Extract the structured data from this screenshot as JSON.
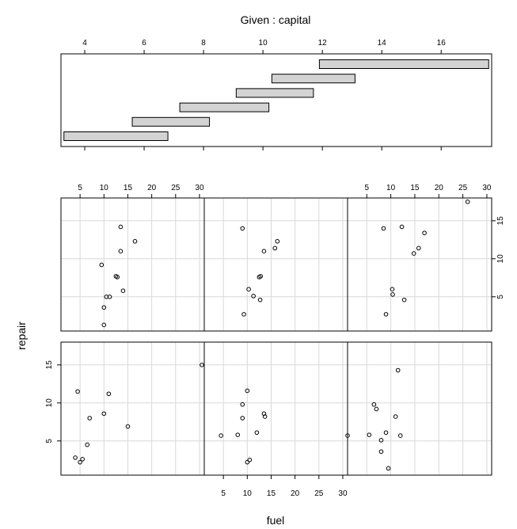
{
  "chart_data": {
    "type": "scatter",
    "title": "Given : capital",
    "xlabel": "fuel",
    "ylabel": "repair",
    "grid": true,
    "given": {
      "axis_ticks": [
        4,
        6,
        8,
        10,
        12,
        14,
        16
      ],
      "range": [
        3.2,
        17.7
      ],
      "intervals": [
        [
          3.3,
          6.8
        ],
        [
          5.6,
          8.2
        ],
        [
          7.2,
          10.2
        ],
        [
          9.1,
          11.7
        ],
        [
          10.3,
          13.1
        ],
        [
          11.9,
          17.6
        ]
      ]
    },
    "xlim": [
      1,
      31
    ],
    "ylim": [
      0.5,
      18
    ],
    "x_ticks": [
      5,
      10,
      15,
      20,
      25,
      30
    ],
    "y_ticks": [
      5,
      10,
      15
    ],
    "panels": [
      {
        "row": "bottom",
        "col": 0,
        "points": [
          [
            4.0,
            2.8
          ],
          [
            5.0,
            2.2
          ],
          [
            5.5,
            2.6
          ],
          [
            6.5,
            4.5
          ],
          [
            7.0,
            8.0
          ],
          [
            4.5,
            11.5
          ],
          [
            10.0,
            8.6
          ],
          [
            11.0,
            11.2
          ],
          [
            15.0,
            6.9
          ]
        ]
      },
      {
        "row": "bottom",
        "col": 1,
        "points": [
          [
            4.5,
            5.7
          ],
          [
            8.0,
            5.8
          ],
          [
            9.0,
            8.0
          ],
          [
            9.0,
            9.8
          ],
          [
            10.0,
            11.6
          ],
          [
            10.0,
            2.2
          ],
          [
            10.5,
            2.5
          ],
          [
            12.0,
            6.1
          ],
          [
            13.5,
            8.6
          ],
          [
            13.7,
            8.2
          ],
          [
            0.5,
            15.0
          ]
        ]
      },
      {
        "row": "bottom",
        "col": 2,
        "points": [
          [
            1.0,
            5.7
          ],
          [
            5.5,
            5.8
          ],
          [
            6.5,
            9.8
          ],
          [
            7.0,
            9.2
          ],
          [
            8.0,
            3.6
          ],
          [
            8.0,
            5.1
          ],
          [
            9.0,
            6.1
          ],
          [
            9.5,
            1.4
          ],
          [
            11.0,
            8.2
          ],
          [
            11.5,
            14.3
          ],
          [
            12.0,
            5.7
          ]
        ]
      },
      {
        "row": "top",
        "col": 0,
        "points": [
          [
            9.5,
            9.2
          ],
          [
            13.5,
            14.2
          ],
          [
            13.5,
            11.0
          ],
          [
            16.5,
            12.3
          ],
          [
            12.5,
            7.7
          ],
          [
            12.8,
            7.6
          ],
          [
            14.0,
            5.8
          ],
          [
            10.5,
            5.0
          ],
          [
            11.2,
            5.0
          ],
          [
            10.0,
            3.6
          ],
          [
            10.0,
            1.3
          ]
        ]
      },
      {
        "row": "top",
        "col": 1,
        "points": [
          [
            9.0,
            14.0
          ],
          [
            13.5,
            11.0
          ],
          [
            15.8,
            11.4
          ],
          [
            16.3,
            12.3
          ],
          [
            12.5,
            7.6
          ],
          [
            12.8,
            7.7
          ],
          [
            10.3,
            6.0
          ],
          [
            11.3,
            5.1
          ],
          [
            12.7,
            4.6
          ],
          [
            9.3,
            2.7
          ]
        ]
      },
      {
        "row": "top",
        "col": 2,
        "points": [
          [
            8.5,
            14.0
          ],
          [
            12.3,
            14.2
          ],
          [
            17.0,
            13.4
          ],
          [
            15.8,
            11.4
          ],
          [
            14.8,
            10.7
          ],
          [
            10.3,
            6.0
          ],
          [
            10.4,
            5.3
          ],
          [
            12.8,
            4.6
          ],
          [
            9.0,
            2.7
          ],
          [
            26.0,
            17.5
          ]
        ]
      }
    ]
  }
}
